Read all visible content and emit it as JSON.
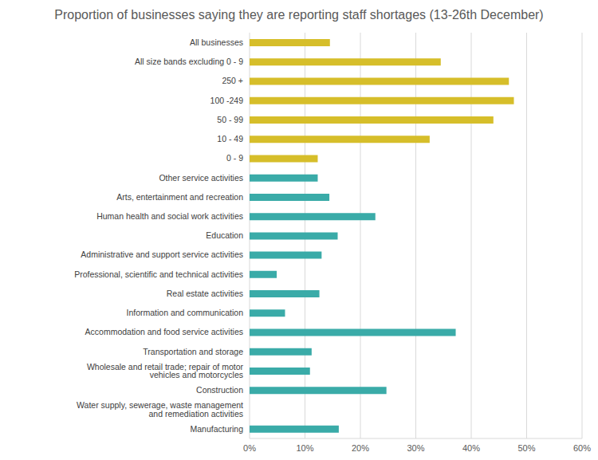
{
  "chart_data": {
    "type": "bar",
    "orientation": "horizontal",
    "title": "Proportion of businesses saying they are reporting staff shortages (13-26th December)",
    "categories": [
      "All businesses",
      "All size bands excluding 0 - 9",
      "250 +",
      "100 -249",
      "50 - 99",
      "10 - 49",
      "0 - 9",
      "Other service activities",
      "Arts, entertainment and recreation",
      "Human health and social work activities",
      "Education",
      "Administrative and support service activities",
      "Professional, scientific and technical activities",
      "Real estate activities",
      "Information and communication",
      "Accommodation and food service activities",
      "Transportation and storage",
      "Wholesale and retail trade; repair of motor vehicles and motorcycles",
      "Construction",
      "Water supply, sewerage, waste management and remediation activities",
      "Manufacturing"
    ],
    "values": [
      14.5,
      34.5,
      46.8,
      47.7,
      44.0,
      32.5,
      12.3,
      12.3,
      14.4,
      22.7,
      15.9,
      13.0,
      4.9,
      12.6,
      6.4,
      37.2,
      11.2,
      10.9,
      24.7,
      0,
      16.1
    ],
    "colors": [
      "#d6be2a",
      "#d6be2a",
      "#d6be2a",
      "#d6be2a",
      "#d6be2a",
      "#d6be2a",
      "#d6be2a",
      "#3aaba8",
      "#3aaba8",
      "#3aaba8",
      "#3aaba8",
      "#3aaba8",
      "#3aaba8",
      "#3aaba8",
      "#3aaba8",
      "#3aaba8",
      "#3aaba8",
      "#3aaba8",
      "#3aaba8",
      "#3aaba8",
      "#3aaba8"
    ],
    "xlim": [
      0,
      60
    ],
    "xticks": [
      {
        "value": 0,
        "label": "0%"
      },
      {
        "value": 10,
        "label": "10%"
      },
      {
        "value": 20,
        "label": "20%"
      },
      {
        "value": 30,
        "label": "30%"
      },
      {
        "value": 40,
        "label": "40%"
      },
      {
        "value": 50,
        "label": "50%"
      },
      {
        "value": 60,
        "label": "60%"
      }
    ],
    "grid": true
  }
}
